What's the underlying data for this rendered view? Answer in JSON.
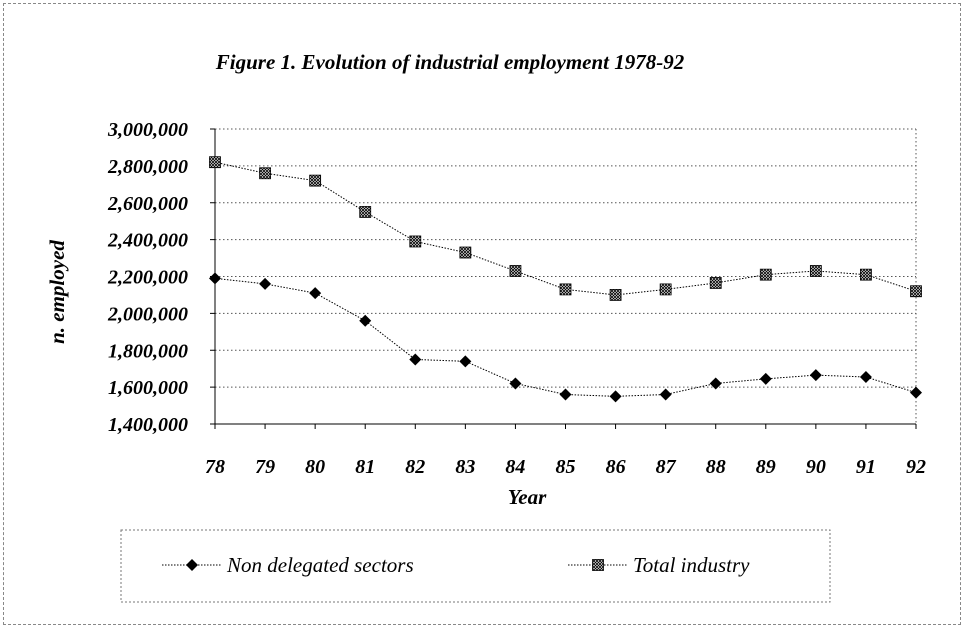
{
  "chart_data": {
    "type": "line",
    "title": "Figure 1. Evolution of industrial employment 1978-92",
    "xlabel": "Year",
    "ylabel": "n. employed",
    "categories": [
      "78",
      "79",
      "80",
      "81",
      "82",
      "83",
      "84",
      "85",
      "86",
      "87",
      "88",
      "89",
      "90",
      "91",
      "92"
    ],
    "ylim": [
      1400000,
      3000000
    ],
    "yticks": [
      3000000,
      2800000,
      2600000,
      2400000,
      2200000,
      2000000,
      1800000,
      1600000,
      1400000
    ],
    "ytick_labels": [
      "3,000,000",
      "2,800,000",
      "2,600,000",
      "2,400,000",
      "2,200,000",
      "2,000,000",
      "1,800,000",
      "1,600,000",
      "1,400,000"
    ],
    "grid": true,
    "legend_position": "bottom",
    "series": [
      {
        "name": "Non delegated sectors",
        "marker": "diamond",
        "color": "#000000",
        "values": [
          2190000,
          2160000,
          2110000,
          1960000,
          1750000,
          1740000,
          1620000,
          1560000,
          1550000,
          1560000,
          1620000,
          1645000,
          1665000,
          1655000,
          1570000
        ]
      },
      {
        "name": "Total industry",
        "marker": "hatched-square",
        "color": "#000000",
        "values": [
          2820000,
          2760000,
          2720000,
          2550000,
          2390000,
          2330000,
          2230000,
          2130000,
          2100000,
          2130000,
          2165000,
          2210000,
          2230000,
          2210000,
          2120000
        ]
      }
    ]
  }
}
